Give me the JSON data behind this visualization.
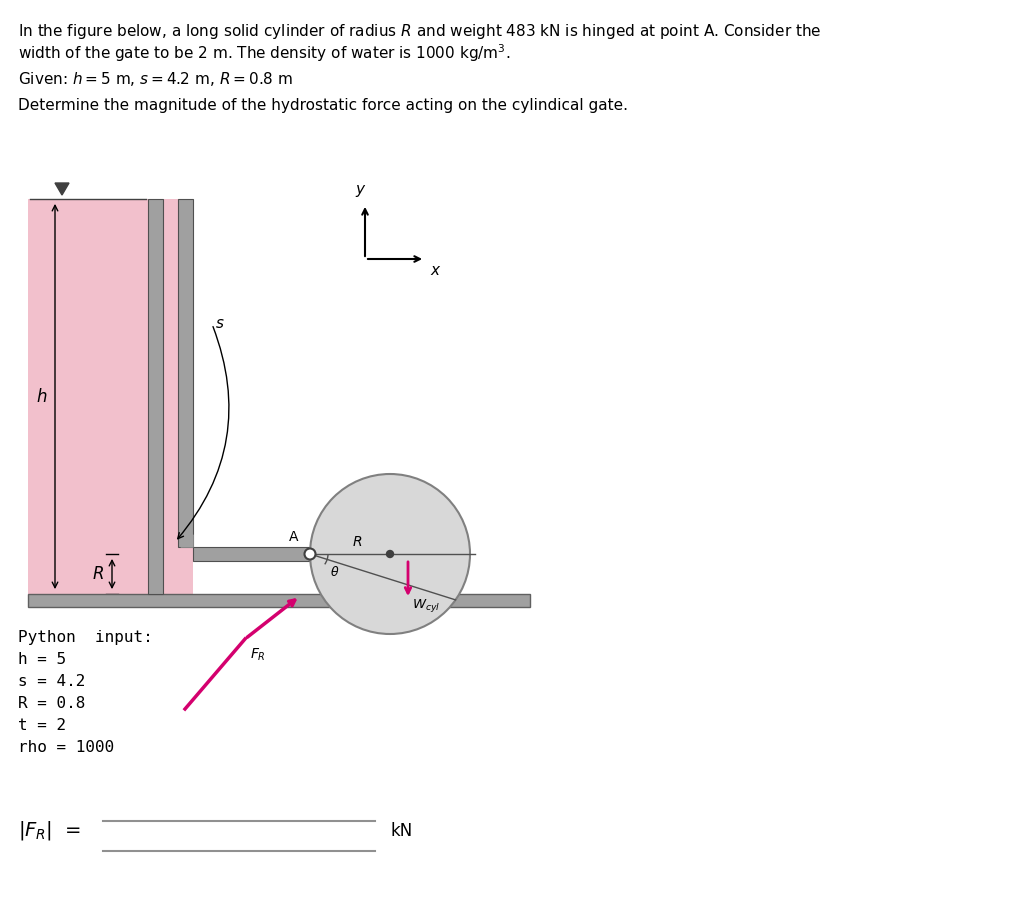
{
  "title_line1": "In the figure below, a long solid cylinder of radius $R$ and weight 483 kN is hinged at point A. Consider the",
  "title_line2": "width of the gate to be 2 m. The density of water is 1000 kg/m$^3$.",
  "given_text": "Given: $h = 5$ m, $s = 4.2$ m, $R = 0.8$ m",
  "determine_text": "Determine the magnitude of the hydrostatic force acting on the cylindical gate.",
  "python_input_label": "Python  input:",
  "python_inputs": [
    "h = 5",
    "s = 4.2",
    "R = 0.8",
    "t = 2",
    "rho = 1000"
  ],
  "fr_label": "$|F_R|$  =",
  "kn_label": "kN",
  "bg_color": "#ffffff",
  "water_color": "#f2c0cc",
  "cylinder_fill": "#d8d8d8",
  "cylinder_edge": "#808080",
  "gate_fill": "#a0a0a0",
  "gate_edge": "#505050",
  "floor_fill": "#a0a0a0",
  "floor_edge": "#606060",
  "arrow_color": "#d4006e",
  "text_color": "#000000",
  "monospace_fontsize": 11.5,
  "label_fontsize": 11
}
